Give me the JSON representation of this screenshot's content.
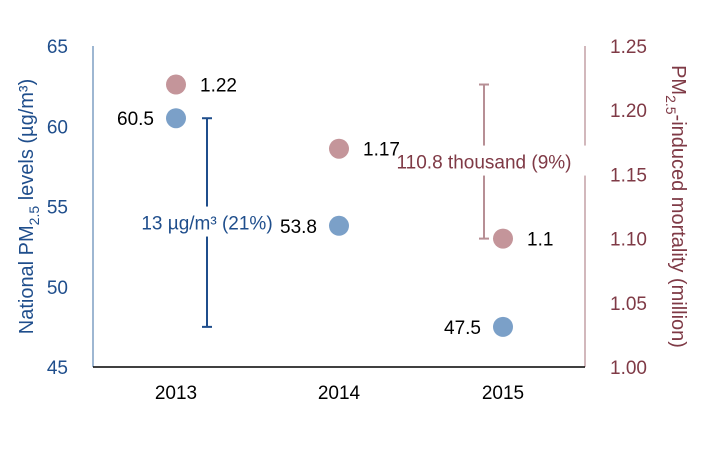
{
  "chart_data": {
    "type": "scatter",
    "categories": [
      "2013",
      "2014",
      "2015"
    ],
    "series": [
      {
        "axis": "left",
        "color": "#7ba0c8",
        "values": [
          60.5,
          53.8,
          47.5
        ],
        "labels": [
          "60.5",
          "53.8",
          "47.5"
        ]
      },
      {
        "axis": "right",
        "color": "#c4959a",
        "values": [
          1.22,
          1.17,
          1.1
        ],
        "labels": [
          "1.22",
          "1.17",
          "1.1"
        ]
      }
    ],
    "y_left": {
      "label_main": "National PM",
      "label_sub": "2.5",
      "label_tail": " levels (µg/m³)",
      "ylim": [
        45,
        65
      ],
      "ticks": [
        45,
        50,
        55,
        60,
        65
      ],
      "color": "#1f4e8c"
    },
    "y_right": {
      "label_main": "PM",
      "label_sub": "2.5",
      "label_tail": "-induced mortality  (million)",
      "ylim": [
        1.0,
        1.25
      ],
      "ticks": [
        "1.00",
        "1.05",
        "1.10",
        "1.15",
        "1.20",
        "1.25"
      ],
      "color": "#7f3a46"
    },
    "annotations": [
      {
        "axis": "left",
        "text": "13 µg/m³ (21%)",
        "from": 47.5,
        "to": 60.5,
        "category": "2013",
        "color": "#1f4e8c"
      },
      {
        "axis": "right",
        "text": "110.8 thousand (9%)",
        "from": 1.1,
        "to": 1.22,
        "category": "2015",
        "color": "#b78f95"
      }
    ]
  }
}
